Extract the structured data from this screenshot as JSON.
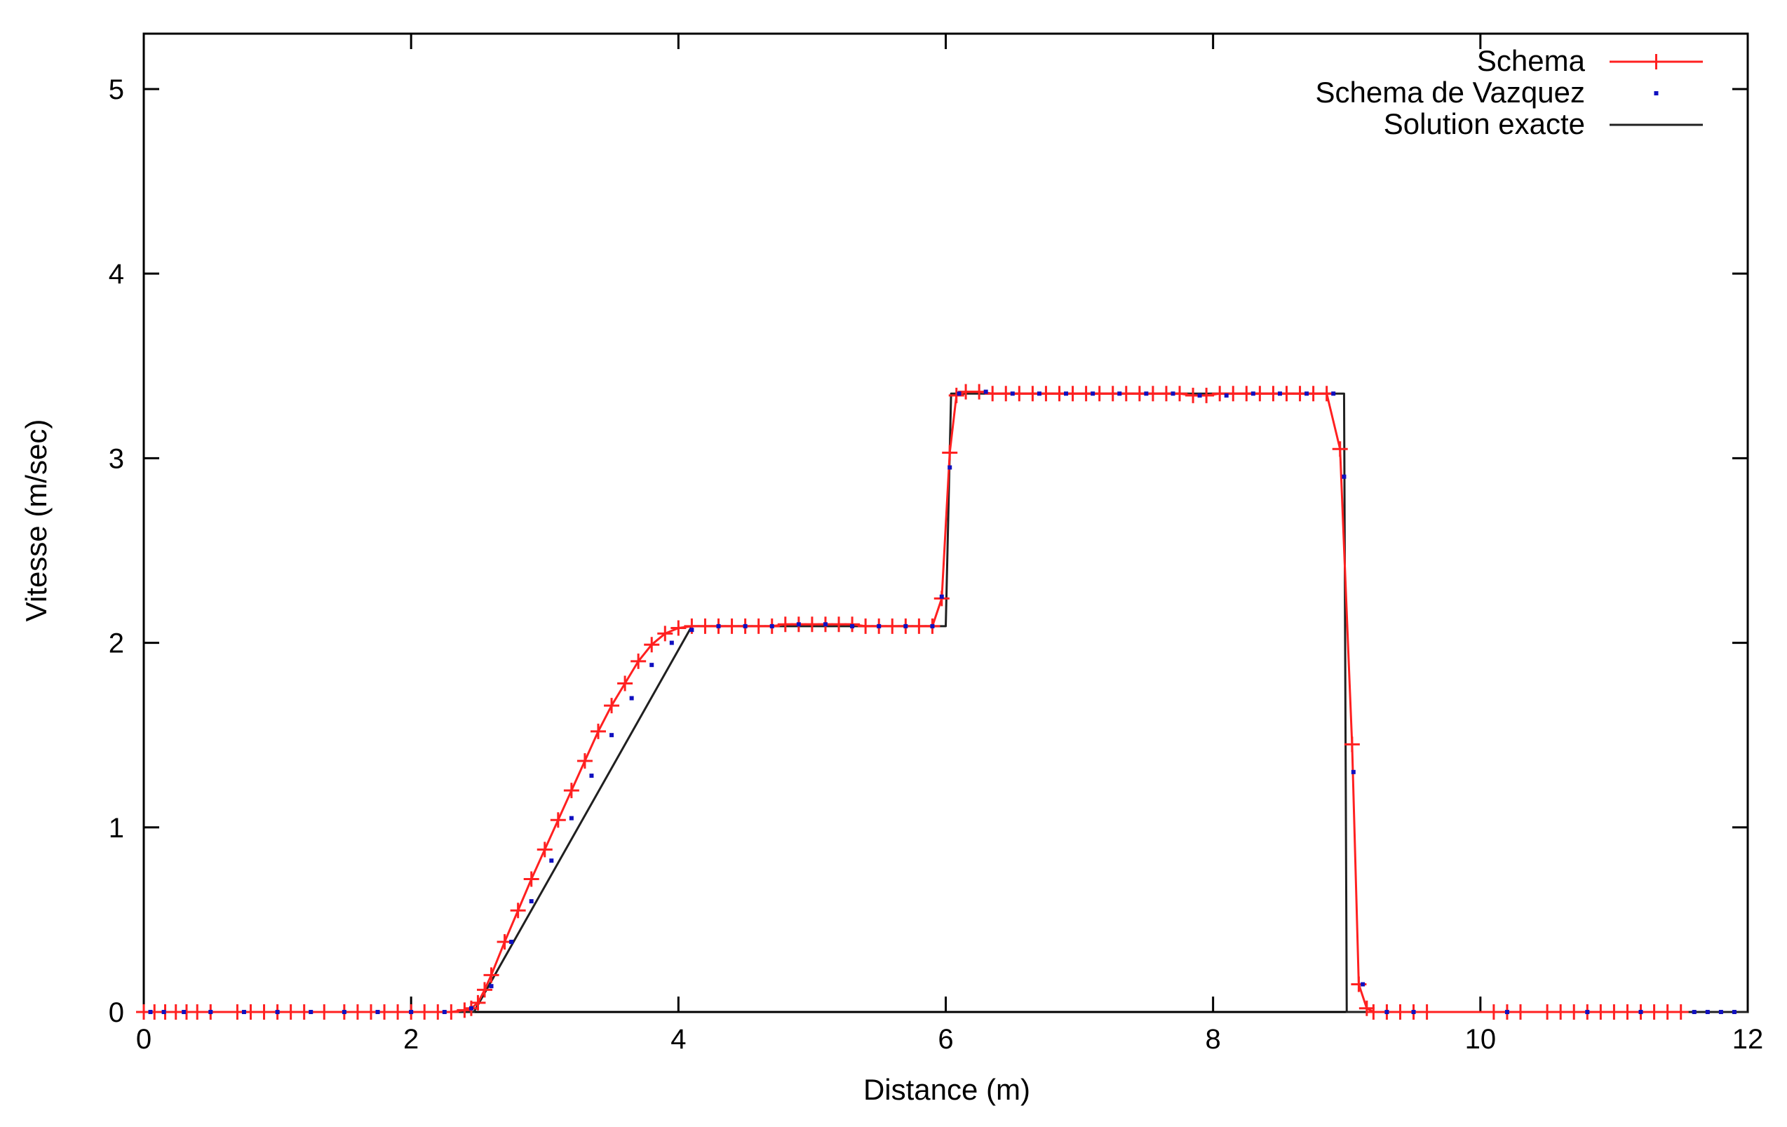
{
  "chart_data": {
    "type": "line",
    "xlabel": "Distance (m)",
    "ylabel": "Vitesse (m/sec)",
    "xlim": [
      0,
      12
    ],
    "ylim": [
      0,
      5.3
    ],
    "xticks": [
      0,
      2,
      4,
      6,
      8,
      10,
      12
    ],
    "yticks": [
      0,
      1,
      2,
      3,
      4,
      5
    ],
    "grid": false,
    "legend_position": "top-right",
    "series": [
      {
        "name": "Schema",
        "style": "line-plus",
        "color": "#ff2020",
        "x": [
          0.0,
          0.08,
          0.16,
          0.24,
          0.32,
          0.4,
          0.5,
          0.7,
          0.8,
          0.9,
          1.0,
          1.1,
          1.2,
          1.35,
          1.5,
          1.6,
          1.7,
          1.8,
          1.9,
          2.0,
          2.1,
          2.2,
          2.3,
          2.4,
          2.45,
          2.5,
          2.55,
          2.6,
          2.7,
          2.8,
          2.9,
          3.0,
          3.1,
          3.2,
          3.3,
          3.4,
          3.5,
          3.6,
          3.7,
          3.8,
          3.9,
          4.0,
          4.1,
          4.2,
          4.3,
          4.4,
          4.5,
          4.6,
          4.7,
          4.8,
          4.9,
          5.0,
          5.1,
          5.2,
          5.3,
          5.4,
          5.5,
          5.6,
          5.7,
          5.8,
          5.9,
          5.97,
          6.03,
          6.08,
          6.15,
          6.25,
          6.35,
          6.45,
          6.55,
          6.65,
          6.75,
          6.85,
          6.95,
          7.05,
          7.15,
          7.25,
          7.35,
          7.45,
          7.55,
          7.65,
          7.75,
          7.85,
          7.95,
          8.05,
          8.15,
          8.25,
          8.35,
          8.45,
          8.55,
          8.65,
          8.75,
          8.85,
          8.95,
          9.04,
          9.09,
          9.15,
          9.2,
          9.3,
          9.4,
          9.5,
          9.6,
          10.1,
          10.2,
          10.3,
          10.5,
          10.6,
          10.7,
          10.8,
          10.9,
          11.0,
          11.1,
          11.2,
          11.3,
          11.4,
          11.5
        ],
        "y": [
          0,
          0,
          0,
          0,
          0,
          0,
          0,
          0,
          0,
          0,
          0,
          0,
          0,
          0,
          0,
          0,
          0,
          0,
          0,
          0,
          0,
          0,
          0,
          0.01,
          0.02,
          0.05,
          0.12,
          0.2,
          0.38,
          0.55,
          0.72,
          0.88,
          1.04,
          1.2,
          1.36,
          1.52,
          1.66,
          1.78,
          1.9,
          1.99,
          2.05,
          2.08,
          2.09,
          2.09,
          2.09,
          2.09,
          2.09,
          2.09,
          2.09,
          2.1,
          2.1,
          2.1,
          2.1,
          2.1,
          2.1,
          2.09,
          2.09,
          2.09,
          2.09,
          2.09,
          2.09,
          2.24,
          3.03,
          3.34,
          3.36,
          3.36,
          3.35,
          3.35,
          3.35,
          3.35,
          3.35,
          3.35,
          3.35,
          3.35,
          3.35,
          3.35,
          3.35,
          3.35,
          3.35,
          3.35,
          3.35,
          3.34,
          3.34,
          3.35,
          3.35,
          3.35,
          3.35,
          3.35,
          3.35,
          3.35,
          3.35,
          3.35,
          3.05,
          1.45,
          0.15,
          0.02,
          0,
          0,
          0,
          0,
          0,
          0,
          0,
          0,
          0,
          0,
          0,
          0,
          0,
          0,
          0,
          0,
          0,
          0,
          0
        ]
      },
      {
        "name": "Schema de Vazquez",
        "style": "points",
        "color": "#1010c0",
        "x": [
          0.05,
          0.15,
          0.3,
          0.5,
          0.75,
          1.0,
          1.25,
          1.5,
          1.75,
          2.0,
          2.25,
          2.45,
          2.6,
          2.75,
          2.9,
          3.05,
          3.2,
          3.35,
          3.5,
          3.65,
          3.8,
          3.95,
          4.1,
          4.3,
          4.5,
          4.7,
          4.9,
          5.1,
          5.3,
          5.5,
          5.7,
          5.9,
          5.97,
          6.03,
          6.1,
          6.3,
          6.5,
          6.7,
          6.9,
          7.1,
          7.3,
          7.5,
          7.7,
          7.9,
          8.1,
          8.3,
          8.5,
          8.7,
          8.9,
          8.98,
          9.05,
          9.12,
          9.3,
          9.5,
          10.2,
          10.8,
          11.2,
          11.6,
          11.7,
          11.8,
          11.9
        ],
        "y": [
          0,
          0,
          0,
          0,
          0,
          0,
          0,
          0,
          0,
          0,
          0,
          0.02,
          0.14,
          0.38,
          0.6,
          0.82,
          1.05,
          1.28,
          1.5,
          1.7,
          1.88,
          2.0,
          2.07,
          2.09,
          2.09,
          2.09,
          2.1,
          2.1,
          2.09,
          2.09,
          2.09,
          2.09,
          2.25,
          2.95,
          3.35,
          3.36,
          3.35,
          3.35,
          3.35,
          3.35,
          3.35,
          3.35,
          3.35,
          3.34,
          3.34,
          3.35,
          3.35,
          3.35,
          3.35,
          2.9,
          1.3,
          0.15,
          0,
          0,
          0,
          0,
          0,
          0,
          0,
          0,
          0
        ]
      },
      {
        "name": "Solution exacte",
        "style": "line",
        "color": "#202020",
        "x": [
          0,
          2.47,
          4.1,
          6.0,
          6.04,
          8.98,
          9.0,
          12.0
        ],
        "y": [
          0,
          0,
          2.09,
          2.09,
          3.35,
          3.35,
          0,
          0
        ]
      }
    ]
  }
}
